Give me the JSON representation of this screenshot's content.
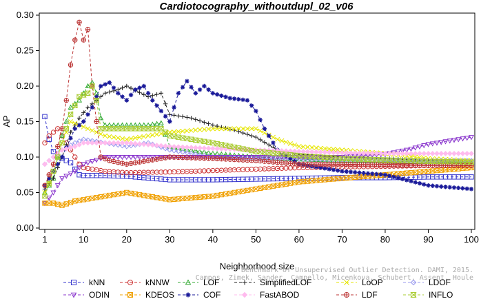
{
  "chart_data": {
    "type": "line",
    "title": "Cardiotocography_withoutdupl_02_v06",
    "xlabel": "Neighborhood size",
    "ylabel": "AP",
    "xlim": [
      0,
      101
    ],
    "ylim": [
      0,
      0.3
    ],
    "x_ticks": [
      1,
      10,
      20,
      30,
      40,
      50,
      60,
      70,
      80,
      90,
      100
    ],
    "y_ticks": [
      "0.00",
      "0.05",
      "0.10",
      "0.15",
      "0.20",
      "0.25",
      "0.30"
    ],
    "grid": false,
    "legend_position": "bottom",
    "credit_lines": [
      "Benchmark of Unsupervised Outlier Detection. DAMI, 2015.",
      "Campos, Zimek, Sander, Campello, Micenkova, Schubert, Assent, Houle"
    ],
    "series": [
      {
        "name": "kNN",
        "color": "#3333cc",
        "marker": "square",
        "points": [
          [
            1,
            0.157
          ],
          [
            2,
            0.125
          ],
          [
            3,
            0.108
          ],
          [
            4,
            0.1
          ],
          [
            5,
            0.098
          ],
          [
            6,
            0.095
          ],
          [
            7,
            0.092
          ],
          [
            8,
            0.083
          ],
          [
            9,
            0.075
          ],
          [
            10,
            0.074
          ],
          [
            15,
            0.074
          ],
          [
            20,
            0.073
          ],
          [
            30,
            0.068
          ],
          [
            40,
            0.068
          ],
          [
            50,
            0.069
          ],
          [
            60,
            0.07
          ],
          [
            70,
            0.071
          ],
          [
            80,
            0.071
          ],
          [
            90,
            0.072
          ],
          [
            100,
            0.072
          ]
        ]
      },
      {
        "name": "kNNW",
        "color": "#cc3333",
        "marker": "circle",
        "points": [
          [
            1,
            0.12
          ],
          [
            2,
            0.13
          ],
          [
            3,
            0.135
          ],
          [
            4,
            0.14
          ],
          [
            5,
            0.13
          ],
          [
            6,
            0.12
          ],
          [
            7,
            0.11
          ],
          [
            8,
            0.1
          ],
          [
            9,
            0.09
          ],
          [
            10,
            0.085
          ],
          [
            15,
            0.08
          ],
          [
            20,
            0.078
          ],
          [
            30,
            0.079
          ],
          [
            40,
            0.081
          ],
          [
            50,
            0.083
          ],
          [
            60,
            0.085
          ],
          [
            70,
            0.086
          ],
          [
            80,
            0.087
          ],
          [
            90,
            0.088
          ],
          [
            100,
            0.089
          ]
        ]
      },
      {
        "name": "LOF",
        "color": "#33aa33",
        "marker": "triangle-up",
        "points": [
          [
            1,
            0.05
          ],
          [
            3,
            0.07
          ],
          [
            5,
            0.13
          ],
          [
            7,
            0.17
          ],
          [
            9,
            0.18
          ],
          [
            11,
            0.2
          ],
          [
            12,
            0.205
          ],
          [
            13,
            0.19
          ],
          [
            14,
            0.155
          ],
          [
            15,
            0.145
          ],
          [
            20,
            0.145
          ],
          [
            25,
            0.145
          ],
          [
            28,
            0.148
          ],
          [
            30,
            0.115
          ],
          [
            40,
            0.105
          ],
          [
            50,
            0.1
          ],
          [
            60,
            0.097
          ],
          [
            70,
            0.095
          ],
          [
            80,
            0.094
          ],
          [
            90,
            0.093
          ],
          [
            100,
            0.093
          ]
        ]
      },
      {
        "name": "SimplifiedLOF",
        "color": "#222222",
        "marker": "plus",
        "points": [
          [
            1,
            0.055
          ],
          [
            3,
            0.07
          ],
          [
            5,
            0.1
          ],
          [
            7,
            0.135
          ],
          [
            9,
            0.155
          ],
          [
            11,
            0.17
          ],
          [
            13,
            0.18
          ],
          [
            15,
            0.19
          ],
          [
            18,
            0.195
          ],
          [
            20,
            0.2
          ],
          [
            25,
            0.185
          ],
          [
            28,
            0.19
          ],
          [
            30,
            0.16
          ],
          [
            35,
            0.155
          ],
          [
            40,
            0.145
          ],
          [
            45,
            0.138
          ],
          [
            50,
            0.128
          ],
          [
            55,
            0.11
          ],
          [
            60,
            0.104
          ],
          [
            70,
            0.1
          ],
          [
            80,
            0.098
          ],
          [
            90,
            0.095
          ],
          [
            100,
            0.093
          ]
        ]
      },
      {
        "name": "LoOP",
        "color": "#e6e600",
        "marker": "x",
        "points": [
          [
            1,
            0.05
          ],
          [
            3,
            0.08
          ],
          [
            5,
            0.12
          ],
          [
            7,
            0.15
          ],
          [
            9,
            0.145
          ],
          [
            11,
            0.14
          ],
          [
            15,
            0.13
          ],
          [
            20,
            0.125
          ],
          [
            25,
            0.13
          ],
          [
            30,
            0.135
          ],
          [
            40,
            0.14
          ],
          [
            50,
            0.14
          ],
          [
            55,
            0.125
          ],
          [
            60,
            0.115
          ],
          [
            70,
            0.11
          ],
          [
            80,
            0.105
          ],
          [
            90,
            0.098
          ],
          [
            100,
            0.095
          ]
        ]
      },
      {
        "name": "LDOF",
        "color": "#9999ee",
        "marker": "diamond",
        "points": [
          [
            1,
            0.09
          ],
          [
            3,
            0.1
          ],
          [
            5,
            0.11
          ],
          [
            8,
            0.12
          ],
          [
            10,
            0.125
          ],
          [
            15,
            0.12
          ],
          [
            20,
            0.115
          ],
          [
            25,
            0.12
          ],
          [
            30,
            0.11
          ],
          [
            40,
            0.1
          ],
          [
            50,
            0.098
          ],
          [
            60,
            0.097
          ],
          [
            70,
            0.096
          ],
          [
            80,
            0.096
          ],
          [
            90,
            0.095
          ],
          [
            100,
            0.095
          ]
        ]
      },
      {
        "name": "ODIN",
        "color": "#8833cc",
        "marker": "triangle-down",
        "points": [
          [
            1,
            0.035
          ],
          [
            3,
            0.05
          ],
          [
            5,
            0.07
          ],
          [
            8,
            0.08
          ],
          [
            10,
            0.09
          ],
          [
            15,
            0.1
          ],
          [
            20,
            0.1
          ],
          [
            30,
            0.1
          ],
          [
            40,
            0.1
          ],
          [
            50,
            0.1
          ],
          [
            60,
            0.1
          ],
          [
            70,
            0.1
          ],
          [
            80,
            0.104
          ],
          [
            85,
            0.11
          ],
          [
            90,
            0.118
          ],
          [
            95,
            0.123
          ],
          [
            100,
            0.128
          ]
        ]
      },
      {
        "name": "KDEOS",
        "color": "#f0a000",
        "marker": "square-x",
        "points": [
          [
            1,
            0.035
          ],
          [
            3,
            0.035
          ],
          [
            5,
            0.032
          ],
          [
            8,
            0.038
          ],
          [
            10,
            0.04
          ],
          [
            15,
            0.045
          ],
          [
            18,
            0.048
          ],
          [
            20,
            0.05
          ],
          [
            25,
            0.045
          ],
          [
            30,
            0.04
          ],
          [
            40,
            0.045
          ],
          [
            50,
            0.055
          ],
          [
            60,
            0.065
          ],
          [
            70,
            0.07
          ],
          [
            80,
            0.075
          ],
          [
            90,
            0.08
          ],
          [
            100,
            0.085
          ]
        ]
      },
      {
        "name": "COF",
        "color": "#1a1a99",
        "marker": "asterisk",
        "points": [
          [
            1,
            0.06
          ],
          [
            5,
            0.1
          ],
          [
            8,
            0.14
          ],
          [
            10,
            0.15
          ],
          [
            12,
            0.17
          ],
          [
            14,
            0.2
          ],
          [
            16,
            0.205
          ],
          [
            18,
            0.19
          ],
          [
            20,
            0.18
          ],
          [
            22,
            0.195
          ],
          [
            24,
            0.2
          ],
          [
            26,
            0.18
          ],
          [
            28,
            0.165
          ],
          [
            30,
            0.15
          ],
          [
            32,
            0.19
          ],
          [
            34,
            0.207
          ],
          [
            36,
            0.19
          ],
          [
            38,
            0.2
          ],
          [
            40,
            0.19
          ],
          [
            44,
            0.183
          ],
          [
            48,
            0.18
          ],
          [
            50,
            0.165
          ],
          [
            52,
            0.14
          ],
          [
            55,
            0.11
          ],
          [
            60,
            0.09
          ],
          [
            70,
            0.08
          ],
          [
            80,
            0.075
          ],
          [
            90,
            0.06
          ],
          [
            100,
            0.055
          ]
        ]
      },
      {
        "name": "FastABOD",
        "color": "#ffbbee",
        "marker": "diamond-filled",
        "points": [
          [
            1,
            0.09
          ],
          [
            3,
            0.1
          ],
          [
            5,
            0.11
          ],
          [
            8,
            0.115
          ],
          [
            10,
            0.12
          ],
          [
            15,
            0.12
          ],
          [
            20,
            0.12
          ],
          [
            30,
            0.115
          ],
          [
            40,
            0.112
          ],
          [
            50,
            0.11
          ],
          [
            60,
            0.108
          ],
          [
            70,
            0.106
          ],
          [
            80,
            0.105
          ],
          [
            90,
            0.105
          ],
          [
            100,
            0.105
          ]
        ]
      },
      {
        "name": "LDF",
        "color": "#bb3333",
        "marker": "circle-plus",
        "points": [
          [
            1,
            0.06
          ],
          [
            3,
            0.09
          ],
          [
            5,
            0.14
          ],
          [
            6,
            0.18
          ],
          [
            7,
            0.23
          ],
          [
            8,
            0.265
          ],
          [
            9,
            0.29
          ],
          [
            10,
            0.265
          ],
          [
            11,
            0.28
          ],
          [
            12,
            0.2
          ],
          [
            13,
            0.15
          ],
          [
            14,
            0.1
          ],
          [
            16,
            0.095
          ],
          [
            20,
            0.09
          ],
          [
            25,
            0.095
          ],
          [
            30,
            0.1
          ],
          [
            40,
            0.098
          ],
          [
            50,
            0.095
          ],
          [
            60,
            0.09
          ],
          [
            70,
            0.09
          ],
          [
            80,
            0.089
          ],
          [
            90,
            0.088
          ],
          [
            100,
            0.088
          ]
        ]
      },
      {
        "name": "INFLO",
        "color": "#aacc33",
        "marker": "hourglass",
        "points": [
          [
            1,
            0.045
          ],
          [
            3,
            0.08
          ],
          [
            5,
            0.12
          ],
          [
            7,
            0.16
          ],
          [
            9,
            0.185
          ],
          [
            11,
            0.19
          ],
          [
            12,
            0.2
          ],
          [
            13,
            0.18
          ],
          [
            14,
            0.14
          ],
          [
            15,
            0.14
          ],
          [
            20,
            0.14
          ],
          [
            25,
            0.14
          ],
          [
            28,
            0.14
          ],
          [
            30,
            0.13
          ],
          [
            40,
            0.12
          ],
          [
            50,
            0.108
          ],
          [
            60,
            0.102
          ],
          [
            70,
            0.098
          ],
          [
            80,
            0.096
          ],
          [
            90,
            0.094
          ],
          [
            100,
            0.093
          ]
        ]
      }
    ]
  }
}
